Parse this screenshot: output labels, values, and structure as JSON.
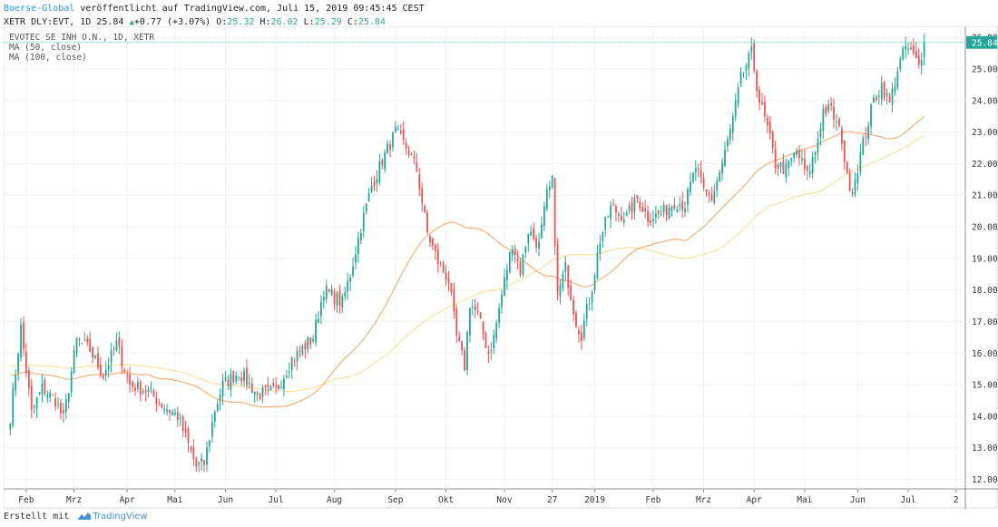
{
  "header": {
    "author": "Boerse-Global",
    "published_text": "veröffentlicht auf TradingView.com, Juli 15, 2019 09:45:45 CEST",
    "symbol_text": "XETR_DLY:EVT, 1D 25.84",
    "change": "+0.77 (+3.07%)",
    "open_label": "O:",
    "open": "25.32",
    "high_label": "H:",
    "high": "26.02",
    "low_label": "L:",
    "low": "25.29",
    "close_label": "C:",
    "close": "25.84"
  },
  "legend": {
    "title": "EVOTEC SE INH O.N., 1D, XETR",
    "ma1": "MA (50, close)",
    "ma2": "MA (100, close)"
  },
  "footer": {
    "made_with": "Erstellt mit",
    "brand": "TradingView"
  },
  "colors": {
    "up": "#26a69a",
    "down": "#ef5350",
    "ma50": "#f7a15a",
    "ma100": "#ffd98a",
    "grid": "#eef1f4",
    "last_price": "#26a69a"
  },
  "chart_data": {
    "type": "candlestick",
    "y_axis_ticks": [
      "12.00",
      "13.00",
      "14.00",
      "15.00",
      "16.00",
      "17.00",
      "18.00",
      "19.00",
      "20.00",
      "21.00",
      "22.00",
      "23.00",
      "24.00",
      "25.00",
      "26.00"
    ],
    "ylim": [
      11.7,
      26.35
    ],
    "x_axis_ticks": [
      {
        "label": "Feb",
        "x": 6
      },
      {
        "label": "Mrz",
        "x": 24
      },
      {
        "label": "Apr",
        "x": 44
      },
      {
        "label": "Mai",
        "x": 62
      },
      {
        "label": "Jun",
        "x": 81
      },
      {
        "label": "Jul",
        "x": 100
      },
      {
        "label": "Aug",
        "x": 122
      },
      {
        "label": "Sep",
        "x": 145
      },
      {
        "label": "Okt",
        "x": 164
      },
      {
        "label": "Nov",
        "x": 186
      },
      {
        "label": "27",
        "x": 204
      },
      {
        "label": "2019",
        "x": 220
      },
      {
        "label": "Feb",
        "x": 242
      },
      {
        "label": "Mrz",
        "x": 261
      },
      {
        "label": "Apr",
        "x": 280
      },
      {
        "label": "Mai",
        "x": 299
      },
      {
        "label": "Jun",
        "x": 319
      },
      {
        "label": "Jul",
        "x": 338
      },
      {
        "label": "2",
        "x": 356
      }
    ],
    "xlim": [
      -2.5,
      359.5
    ],
    "last_price": 25.84,
    "last_price_label": "25.84",
    "price_waypoints": [
      [
        0,
        14.0
      ],
      [
        4,
        16.8
      ],
      [
        8,
        14.1
      ],
      [
        12,
        14.9
      ],
      [
        17,
        14.5
      ],
      [
        20,
        13.9
      ],
      [
        25,
        16.4
      ],
      [
        30,
        16.1
      ],
      [
        35,
        15.3
      ],
      [
        40,
        16.3
      ],
      [
        45,
        15.0
      ],
      [
        52,
        14.8
      ],
      [
        58,
        14.3
      ],
      [
        63,
        14.0
      ],
      [
        67,
        13.1
      ],
      [
        70,
        12.4
      ],
      [
        73,
        12.5
      ],
      [
        77,
        14.2
      ],
      [
        80,
        15.0
      ],
      [
        86,
        15.4
      ],
      [
        93,
        14.7
      ],
      [
        100,
        14.8
      ],
      [
        106,
        15.8
      ],
      [
        114,
        16.5
      ],
      [
        118,
        18.0
      ],
      [
        125,
        17.6
      ],
      [
        128,
        18.5
      ],
      [
        132,
        20.0
      ],
      [
        136,
        21.3
      ],
      [
        140,
        22.1
      ],
      [
        145,
        23.0
      ],
      [
        150,
        22.4
      ],
      [
        153,
        21.8
      ],
      [
        157,
        19.8
      ],
      [
        161,
        18.9
      ],
      [
        165,
        18.3
      ],
      [
        168,
        16.5
      ],
      [
        171,
        15.6
      ],
      [
        173,
        17.6
      ],
      [
        176,
        17.2
      ],
      [
        180,
        16.0
      ],
      [
        182,
        16.5
      ],
      [
        186,
        18.3
      ],
      [
        189,
        19.5
      ],
      [
        192,
        18.6
      ],
      [
        195,
        19.9
      ],
      [
        199,
        19.4
      ],
      [
        202,
        21.0
      ],
      [
        204,
        21.4
      ],
      [
        206,
        17.8
      ],
      [
        209,
        18.7
      ],
      [
        213,
        17.0
      ],
      [
        215,
        16.6
      ],
      [
        219,
        18.1
      ],
      [
        222,
        19.6
      ],
      [
        226,
        20.6
      ],
      [
        232,
        20.3
      ],
      [
        236,
        20.9
      ],
      [
        240,
        20.3
      ],
      [
        245,
        20.4
      ],
      [
        250,
        20.8
      ],
      [
        254,
        20.7
      ],
      [
        258,
        21.9
      ],
      [
        261,
        21.1
      ],
      [
        264,
        20.9
      ],
      [
        268,
        22.0
      ],
      [
        272,
        23.4
      ],
      [
        275,
        24.7
      ],
      [
        279,
        25.5
      ],
      [
        282,
        24.0
      ],
      [
        285,
        23.1
      ],
      [
        288,
        22.0
      ],
      [
        292,
        21.8
      ],
      [
        296,
        22.4
      ],
      [
        300,
        21.6
      ],
      [
        303,
        22.4
      ],
      [
        306,
        23.7
      ],
      [
        309,
        23.7
      ],
      [
        313,
        22.8
      ],
      [
        315,
        21.5
      ],
      [
        317,
        21.2
      ],
      [
        319,
        21.9
      ],
      [
        322,
        23.0
      ],
      [
        325,
        24.0
      ],
      [
        328,
        24.5
      ],
      [
        331,
        23.9
      ],
      [
        334,
        25.0
      ],
      [
        337,
        25.7
      ],
      [
        340,
        25.4
      ],
      [
        342,
        25.1
      ],
      [
        344,
        25.84
      ]
    ],
    "series": [
      {
        "name": "MA (50, close)",
        "period": 50
      },
      {
        "name": "MA (100, close)",
        "period": 100
      }
    ]
  }
}
